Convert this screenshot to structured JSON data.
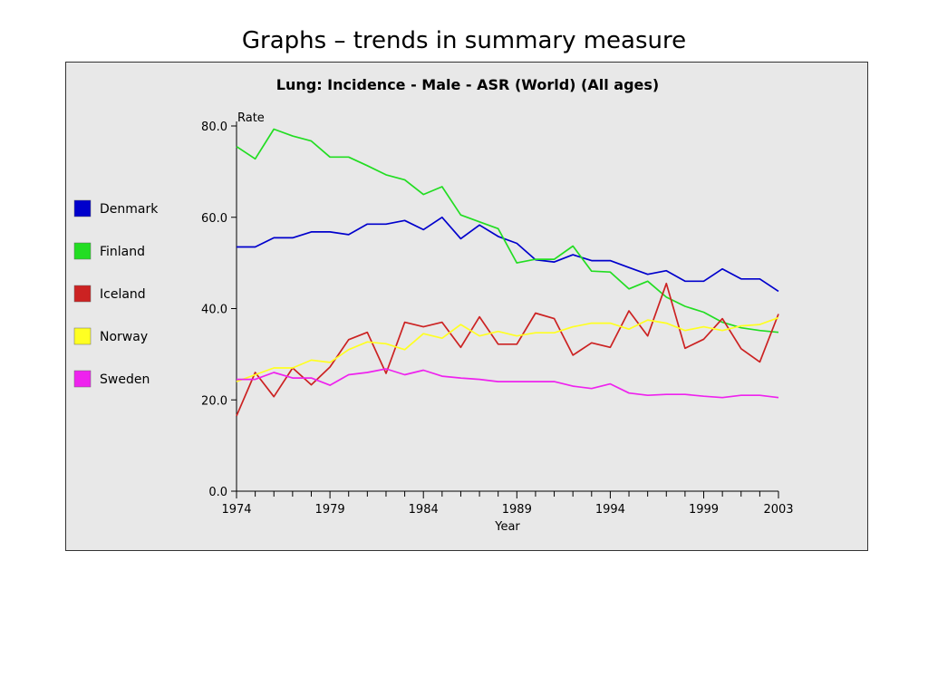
{
  "slide": {
    "title": "Graphs – trends in summary measure"
  },
  "chart_data": {
    "type": "line",
    "title": "Lung: Incidence - Male - ASR (World) (All ages)",
    "xlabel": "Year",
    "ylabel": "Rate",
    "xlim": [
      1974,
      2003
    ],
    "ylim": [
      0,
      80
    ],
    "y_ticks": [
      "0.0",
      "20.0",
      "40.0",
      "60.0",
      "80.0"
    ],
    "x_tick_labels": [
      "1974",
      "1979",
      "1984",
      "1989",
      "1994",
      "1999",
      "2003"
    ],
    "x": [
      1974,
      1975,
      1976,
      1977,
      1978,
      1979,
      1980,
      1981,
      1982,
      1983,
      1984,
      1985,
      1986,
      1987,
      1988,
      1989,
      1990,
      1991,
      1992,
      1993,
      1994,
      1995,
      1996,
      1997,
      1998,
      1999,
      2000,
      2001,
      2002,
      2003
    ],
    "series": [
      {
        "name": "Denmark",
        "color": "#0000cc",
        "values": [
          53.5,
          53.5,
          55.5,
          55.5,
          56.8,
          56.8,
          56.2,
          58.5,
          58.5,
          59.3,
          57.3,
          60.0,
          55.3,
          58.3,
          55.8,
          54.3,
          50.7,
          50.2,
          51.8,
          50.5,
          50.5,
          49.0,
          47.5,
          48.3,
          46.0,
          46.0,
          48.7,
          46.5,
          46.5,
          43.8
        ]
      },
      {
        "name": "Finland",
        "color": "#22dd22",
        "values": [
          75.5,
          72.8,
          79.3,
          77.8,
          76.7,
          73.2,
          73.2,
          71.3,
          69.3,
          68.2,
          65.0,
          66.7,
          60.5,
          59.0,
          57.5,
          50.0,
          50.8,
          50.8,
          53.7,
          48.2,
          48.0,
          44.3,
          46.0,
          42.5,
          40.5,
          39.2,
          37.0,
          35.8,
          35.2,
          34.8
        ]
      },
      {
        "name": "Iceland",
        "color": "#cc2222",
        "values": [
          16.5,
          26.0,
          20.7,
          27.0,
          23.3,
          27.2,
          33.2,
          34.8,
          25.8,
          37.0,
          36.0,
          37.0,
          31.5,
          38.2,
          32.2,
          32.2,
          39.0,
          37.8,
          29.8,
          32.5,
          31.5,
          39.5,
          34.0,
          45.5,
          31.3,
          33.3,
          37.8,
          31.2,
          28.3,
          38.8
        ]
      },
      {
        "name": "Norway",
        "color": "#ffff22",
        "values": [
          24.0,
          25.5,
          27.0,
          27.0,
          28.7,
          28.2,
          31.0,
          32.7,
          32.3,
          31.0,
          34.5,
          33.5,
          36.5,
          34.0,
          35.0,
          34.0,
          34.7,
          34.7,
          36.0,
          36.8,
          36.8,
          35.5,
          37.5,
          36.8,
          35.2,
          36.0,
          35.2,
          36.2,
          36.5,
          38.0
        ]
      },
      {
        "name": "Sweden",
        "color": "#ee22ee",
        "values": [
          24.5,
          24.5,
          26.0,
          24.8,
          24.8,
          23.2,
          25.5,
          26.0,
          26.8,
          25.5,
          26.5,
          25.2,
          24.8,
          24.5,
          24.0,
          24.0,
          24.0,
          24.0,
          23.0,
          22.5,
          23.5,
          21.5,
          21.0,
          21.2,
          21.2,
          20.8,
          20.5,
          21.0,
          21.0,
          20.5
        ]
      }
    ]
  }
}
